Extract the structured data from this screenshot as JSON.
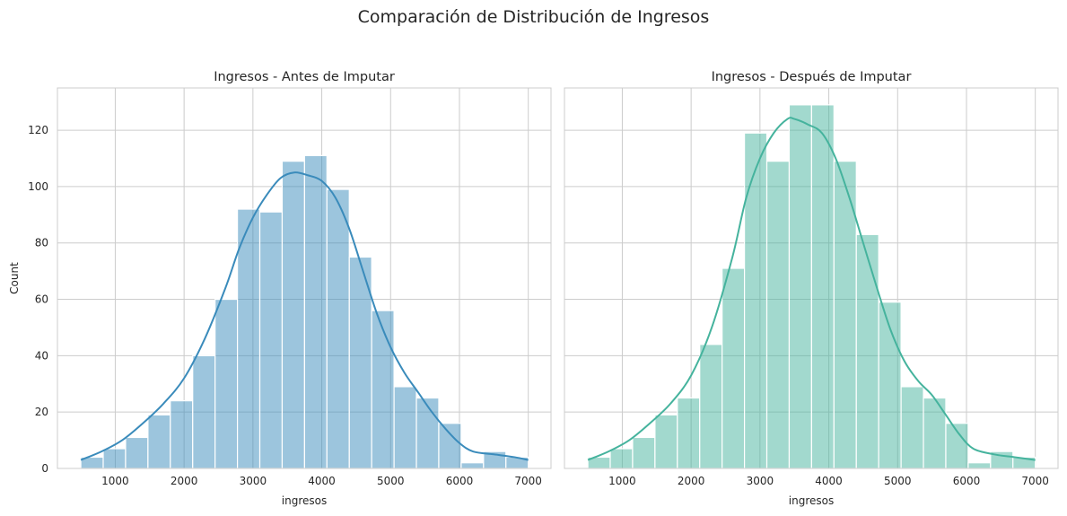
{
  "figure": {
    "suptitle": "Comparación de Distribución de Ingresos"
  },
  "chart_data": [
    {
      "type": "bar",
      "subtype": "histogram",
      "title": "Ingresos - Antes de Imputar",
      "xlabel": "ingresos",
      "ylabel": "Count",
      "xlim": [
        160,
        7330
      ],
      "ylim": [
        0,
        135
      ],
      "xticks": [
        1000,
        2000,
        3000,
        4000,
        5000,
        6000,
        7000
      ],
      "yticks": [
        0,
        20,
        40,
        60,
        80,
        100,
        120
      ],
      "grid": true,
      "bar_color": "#3a8bbb",
      "bar_opacity": 0.5,
      "kde_color": "#3a8bbb",
      "bin_edges": [
        500,
        825,
        1150,
        1475,
        1800,
        2125,
        2450,
        2775,
        3100,
        3425,
        3750,
        4075,
        4400,
        4725,
        5050,
        5375,
        5700,
        6025,
        6350,
        6675,
        7000
      ],
      "counts": [
        4,
        7,
        11,
        19,
        24,
        40,
        60,
        92,
        91,
        109,
        111,
        99,
        75,
        56,
        29,
        25,
        16,
        2,
        6,
        4
      ],
      "kde": {
        "x": [
          500,
          800,
          1100,
          1400,
          1700,
          2000,
          2300,
          2600,
          2800,
          3000,
          3200,
          3400,
          3600,
          3800,
          4000,
          4200,
          4400,
          4600,
          4800,
          5000,
          5200,
          5400,
          5600,
          5800,
          6000,
          6200,
          6500,
          6800,
          7000
        ],
        "y": [
          3,
          6,
          10,
          16,
          23,
          32,
          46,
          64,
          78,
          89,
          97,
          103,
          105,
          104,
          102,
          96,
          85,
          70,
          55,
          43,
          34,
          27,
          20,
          14,
          9,
          6,
          5,
          4,
          3
        ]
      }
    },
    {
      "type": "bar",
      "subtype": "histogram",
      "title": "Ingresos - Después de Imputar",
      "xlabel": "ingresos",
      "ylabel": "",
      "xlim": [
        160,
        7330
      ],
      "ylim": [
        0,
        135
      ],
      "xticks": [
        1000,
        2000,
        3000,
        4000,
        5000,
        6000,
        7000
      ],
      "yticks": [
        0,
        20,
        40,
        60,
        80,
        100,
        120
      ],
      "grid": true,
      "bar_color": "#45b39d",
      "bar_opacity": 0.5,
      "kde_color": "#45b39d",
      "bin_edges": [
        500,
        825,
        1150,
        1475,
        1800,
        2125,
        2450,
        2775,
        3100,
        3425,
        3750,
        4075,
        4400,
        4725,
        5050,
        5375,
        5700,
        6025,
        6350,
        6675,
        7000
      ],
      "counts": [
        4,
        7,
        11,
        19,
        25,
        44,
        71,
        119,
        109,
        129,
        129,
        109,
        83,
        59,
        29,
        25,
        16,
        2,
        6,
        4
      ],
      "kde": {
        "x": [
          500,
          800,
          1100,
          1400,
          1700,
          2000,
          2300,
          2600,
          2800,
          3000,
          3200,
          3400,
          3500,
          3700,
          3900,
          4100,
          4300,
          4500,
          4700,
          4900,
          5100,
          5300,
          5500,
          5700,
          5900,
          6100,
          6400,
          6700,
          7000
        ],
        "y": [
          3,
          6,
          10,
          16,
          23,
          33,
          50,
          75,
          96,
          110,
          119,
          124,
          124,
          122,
          119,
          110,
          96,
          80,
          64,
          49,
          38,
          31,
          26,
          19,
          12,
          7,
          5,
          4,
          3
        ]
      }
    }
  ]
}
